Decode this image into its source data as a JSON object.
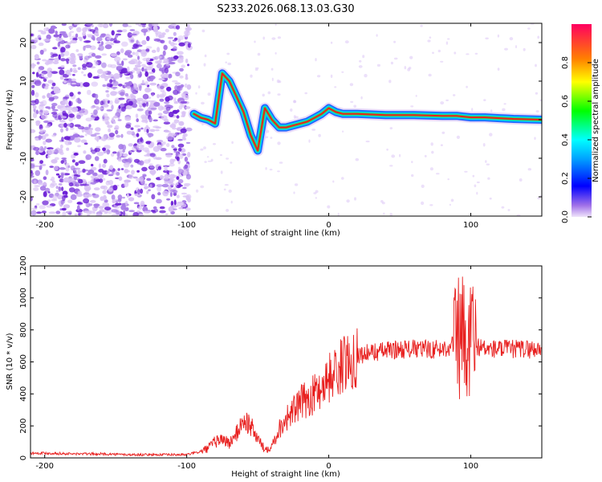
{
  "title": "S233.2026.068.13.03.G30",
  "colors": {
    "snr_line": "#e8201f",
    "ridge": "#e8201f",
    "speckle_light": "#d9c2f5",
    "speckle_mid": "#a77be8",
    "speckle_dark": "#6b1fd6"
  },
  "chart_data": [
    {
      "type": "heatmap",
      "name": "spectrogram",
      "xlabel": "Height of straight line (km)",
      "ylabel": "Frequency (Hz)",
      "xlim": [
        -210,
        150
      ],
      "ylim": [
        -25,
        25
      ],
      "xticks": [
        -200,
        -100,
        0,
        100
      ],
      "xtick_labels": [
        "-200",
        "-100",
        "0",
        "100"
      ],
      "yticks": [
        -20,
        -10,
        0,
        10,
        20
      ],
      "ytick_labels": [
        "-20",
        "-10",
        "0",
        "10",
        "20"
      ],
      "colorbar": {
        "label": "Normalized spectral amplitude",
        "range": [
          0,
          1
        ],
        "ticks": [
          0.0,
          0.2,
          0.4,
          0.6,
          0.8
        ],
        "tick_labels": [
          "0.0",
          "0.2",
          "0.4",
          "0.6",
          "0.8"
        ]
      },
      "ridge": {
        "x": [
          -95,
          -90,
          -85,
          -80,
          -75,
          -70,
          -65,
          -60,
          -55,
          -50,
          -45,
          -40,
          -35,
          -30,
          -25,
          -20,
          -15,
          -10,
          -5,
          0,
          5,
          10,
          20,
          40,
          60,
          80,
          90,
          95,
          100,
          110,
          120,
          130,
          140,
          150
        ],
        "y": [
          1.5,
          0.5,
          0,
          -1,
          12,
          10,
          6,
          2,
          -4,
          -8,
          3,
          0,
          -2,
          -2,
          -1.5,
          -1,
          -0.5,
          0.5,
          1.5,
          3,
          2,
          1.5,
          1.5,
          1.2,
          1.2,
          1,
          1,
          0.8,
          0.6,
          0.6,
          0.4,
          0.2,
          0.1,
          0
        ]
      }
    },
    {
      "type": "line",
      "name": "snr",
      "xlabel": "Height of straight line (km)",
      "ylabel": "SNR (10 * v/v)",
      "xlim": [
        -210,
        150
      ],
      "ylim": [
        0,
        1200
      ],
      "xticks": [
        -200,
        -100,
        0,
        100
      ],
      "xtick_labels": [
        "-200",
        "-100",
        "0",
        "100"
      ],
      "yticks": [
        0,
        200,
        400,
        600,
        800,
        1000,
        1200
      ],
      "ytick_labels": [
        "0",
        "200",
        "400",
        "600",
        "800",
        "1000",
        "1200"
      ],
      "series": [
        {
          "name": "SNR",
          "x": [
            -210,
            -200,
            -180,
            -160,
            -140,
            -120,
            -110,
            -100,
            -95,
            -90,
            -85,
            -80,
            -75,
            -70,
            -65,
            -60,
            -55,
            -50,
            -45,
            -40,
            -35,
            -30,
            -25,
            -20,
            -15,
            -10,
            -5,
            0,
            5,
            10,
            15,
            20,
            30,
            40,
            50,
            60,
            70,
            80,
            85,
            90,
            95,
            97,
            100,
            102,
            105,
            110,
            120,
            130,
            140,
            150
          ],
          "y": [
            30,
            30,
            25,
            25,
            20,
            20,
            20,
            20,
            30,
            40,
            60,
            100,
            120,
            90,
            150,
            240,
            200,
            120,
            50,
            80,
            180,
            250,
            290,
            340,
            370,
            400,
            450,
            500,
            540,
            580,
            620,
            640,
            660,
            670,
            680,
            680,
            680,
            680,
            700,
            720,
            760,
            500,
            850,
            700,
            700,
            680,
            680,
            680,
            680,
            680
          ]
        }
      ]
    }
  ]
}
